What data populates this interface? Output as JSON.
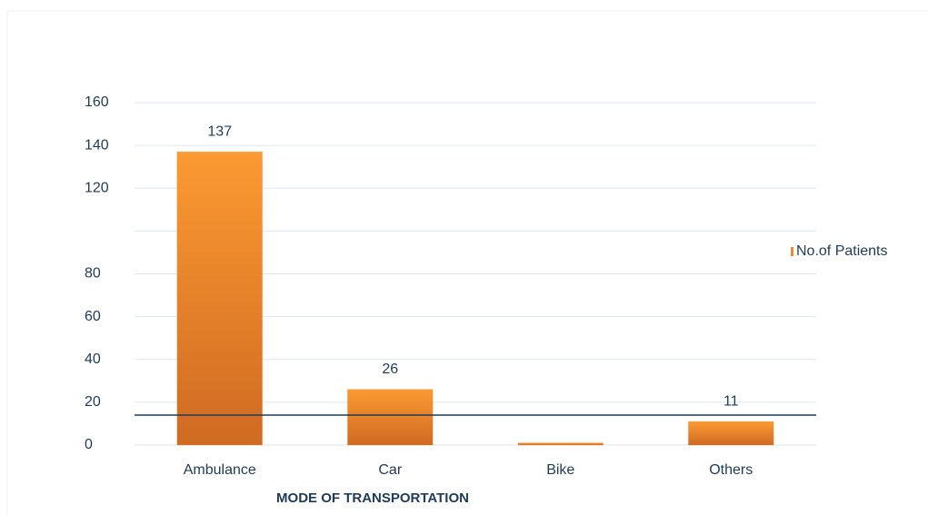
{
  "chart_data": {
    "type": "bar",
    "xlabel": "MODE OF TRANSPORTATION",
    "categories": [
      "Ambulance",
      "Car",
      "Bike",
      "Others"
    ],
    "series": [
      {
        "name": "No.of Patients",
        "color": "#f08a2a",
        "values": [
          137,
          26,
          1,
          11
        ],
        "value_labels": [
          "137",
          "26",
          null,
          "11"
        ]
      }
    ],
    "ylim": [
      0,
      160
    ],
    "yticks": [
      0,
      20,
      40,
      60,
      80,
      120,
      140,
      160
    ],
    "ygrid": [
      0,
      20,
      40,
      60,
      80,
      100,
      120,
      140,
      160
    ],
    "reference_line": 14,
    "grid": true,
    "legend": "right"
  }
}
